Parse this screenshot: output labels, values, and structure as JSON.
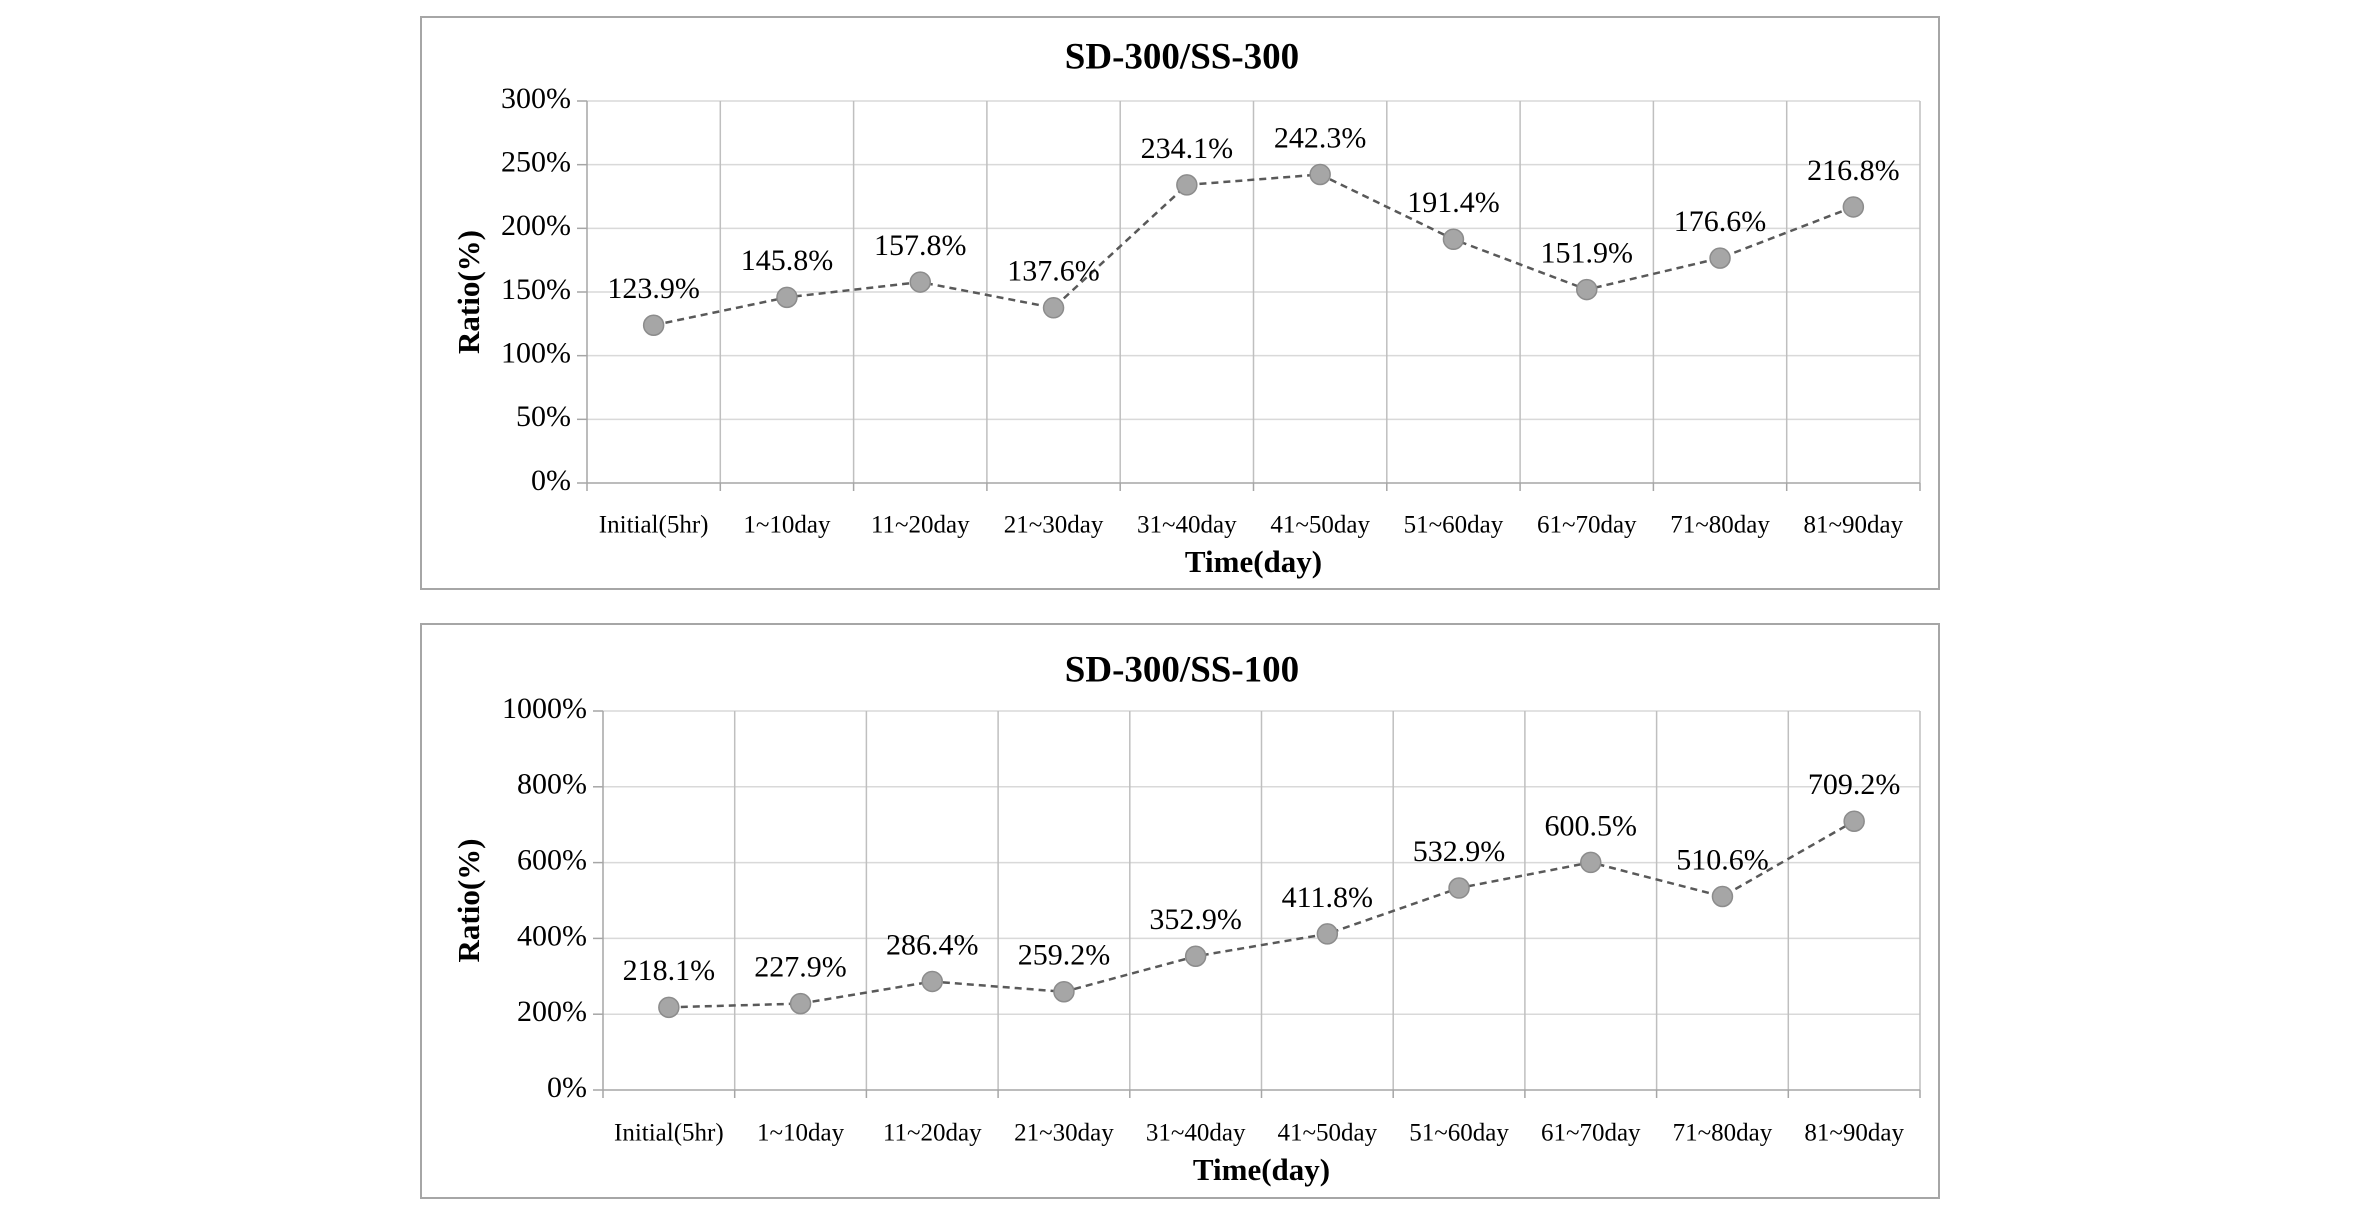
{
  "chart_data": [
    {
      "type": "line",
      "title": "SD-300/SS-300",
      "xlabel": "Time(day)",
      "ylabel": "Ratio(%)",
      "ylim": [
        0,
        300
      ],
      "yticks": [
        0,
        50,
        100,
        150,
        200,
        250,
        300
      ],
      "ytick_labels": [
        "0%",
        "50%",
        "100%",
        "150%",
        "200%",
        "250%",
        "300%"
      ],
      "categories": [
        "Initial(5hr)",
        "1~10day",
        "11~20day",
        "21~30day",
        "31~40day",
        "41~50day",
        "51~60day",
        "61~70day",
        "71~80day",
        "81~90day"
      ],
      "values": [
        123.9,
        145.8,
        157.8,
        137.6,
        234.1,
        242.3,
        191.4,
        151.9,
        176.6,
        216.8
      ],
      "data_labels": [
        "123.9%",
        "145.8%",
        "157.8%",
        "137.6%",
        "234.1%",
        "242.3%",
        "191.4%",
        "151.9%",
        "176.6%",
        "216.8%"
      ],
      "grid": true,
      "line_style": "dashed",
      "line_color": "#595959",
      "marker_color": "#a6a6a6"
    },
    {
      "type": "line",
      "title": "SD-300/SS-100",
      "xlabel": "Time(day)",
      "ylabel": "Ratio(%)",
      "ylim": [
        0,
        1000
      ],
      "yticks": [
        0,
        200,
        400,
        600,
        800,
        1000
      ],
      "ytick_labels": [
        "0%",
        "200%",
        "400%",
        "600%",
        "800%",
        "1000%"
      ],
      "categories": [
        "Initial(5hr)",
        "1~10day",
        "11~20day",
        "21~30day",
        "31~40day",
        "41~50day",
        "51~60day",
        "61~70day",
        "71~80day",
        "81~90day"
      ],
      "values": [
        218.1,
        227.9,
        286.4,
        259.2,
        352.9,
        411.8,
        532.9,
        600.5,
        510.6,
        709.2
      ],
      "data_labels": [
        "218.1%",
        "227.9%",
        "286.4%",
        "259.2%",
        "352.9%",
        "411.8%",
        "532.9%",
        "600.5%",
        "510.6%",
        "709.2%"
      ],
      "grid": true,
      "line_style": "dashed",
      "line_color": "#595959",
      "marker_color": "#a6a6a6"
    }
  ]
}
